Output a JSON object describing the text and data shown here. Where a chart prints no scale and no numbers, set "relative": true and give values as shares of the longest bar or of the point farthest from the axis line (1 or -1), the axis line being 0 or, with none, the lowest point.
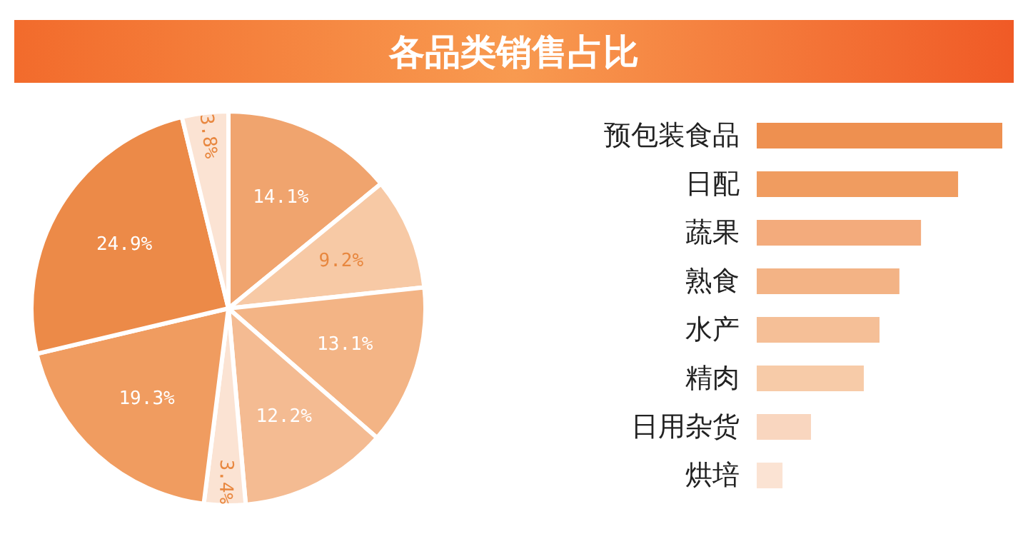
{
  "chart_data": [
    {
      "type": "pie",
      "title": "各品类销售占比",
      "categories": [
        null,
        null,
        null,
        null,
        null,
        null,
        null,
        null
      ],
      "values": [
        14.1,
        9.2,
        13.1,
        12.2,
        3.4,
        19.3,
        24.9,
        3.8
      ],
      "colors": [
        "#f0a46e",
        "#f7c9a5",
        "#f3b485",
        "#f4bb92",
        "#fbe3d3",
        "#f09c60",
        "#ec8a48",
        "#fbe3d3"
      ],
      "value_labels": [
        "14.1%",
        "9.2%",
        "13.1%",
        "12.2%",
        "3.4%",
        "19.3%",
        "24.9%",
        "3.8%"
      ]
    },
    {
      "type": "bar",
      "orientation": "horizontal",
      "relative": true,
      "categories": [
        "预包装食品",
        "日配",
        "蔬果",
        "熟食",
        "水产",
        "精肉",
        "日用杂货",
        "烘培"
      ],
      "values": [
        1,
        0.82,
        0.669,
        0.581,
        0.5,
        0.436,
        0.221,
        0.105
      ],
      "colors": [
        "#ee9050",
        "#f09c60",
        "#f3ab7c",
        "#f3b385",
        "#f5bf97",
        "#f7cba8",
        "#f9d6bf",
        "#fbe3d3"
      ]
    }
  ]
}
